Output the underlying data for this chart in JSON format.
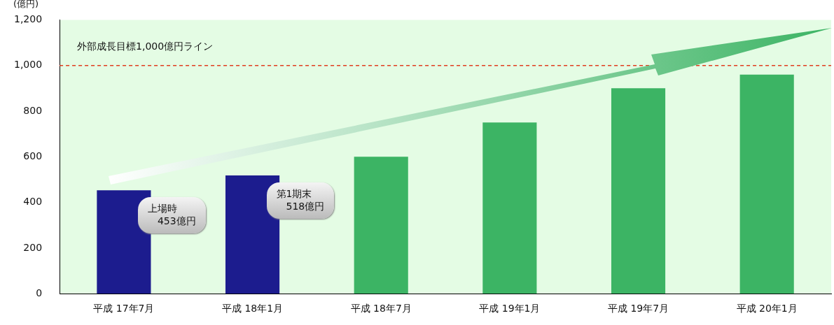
{
  "chart_data": {
    "type": "bar",
    "ylabel": "(億円)",
    "categories": [
      "平成 17年7月",
      "平成 18年1月",
      "平成 18年7月",
      "平成 19年1月",
      "平成 19年7月",
      "平成 20年1月"
    ],
    "values": [
      453,
      518,
      600,
      750,
      900,
      960
    ],
    "colors": [
      "#1c1c8e",
      "#1c1c8e",
      "#3cb464",
      "#3cb464",
      "#3cb464",
      "#3cb464"
    ],
    "ylim": [
      0,
      1200
    ],
    "yticks": [
      0,
      {
        "value": 200,
        "label": "200"
      },
      {
        "value": 400,
        "label": "400"
      },
      {
        "value": 600,
        "label": "600"
      },
      {
        "value": 800,
        "label": "800"
      },
      {
        "value": 1000,
        "label": "1,000"
      },
      {
        "value": 1200,
        "label": "1,200"
      }
    ],
    "grid": false,
    "legend": false,
    "ref_lines": [
      {
        "axis": "y",
        "value": 1000,
        "label": "外部成長目標1,000億円ライン",
        "color": "#e03c1e",
        "line_style": "dashed"
      }
    ],
    "annotations": [
      {
        "text": "上場時\n　453億円",
        "x": "平成 17年7月",
        "y": 453
      },
      {
        "text": "第1期末\n　518億円",
        "x": "平成 18年1月",
        "y": 518
      }
    ]
  }
}
